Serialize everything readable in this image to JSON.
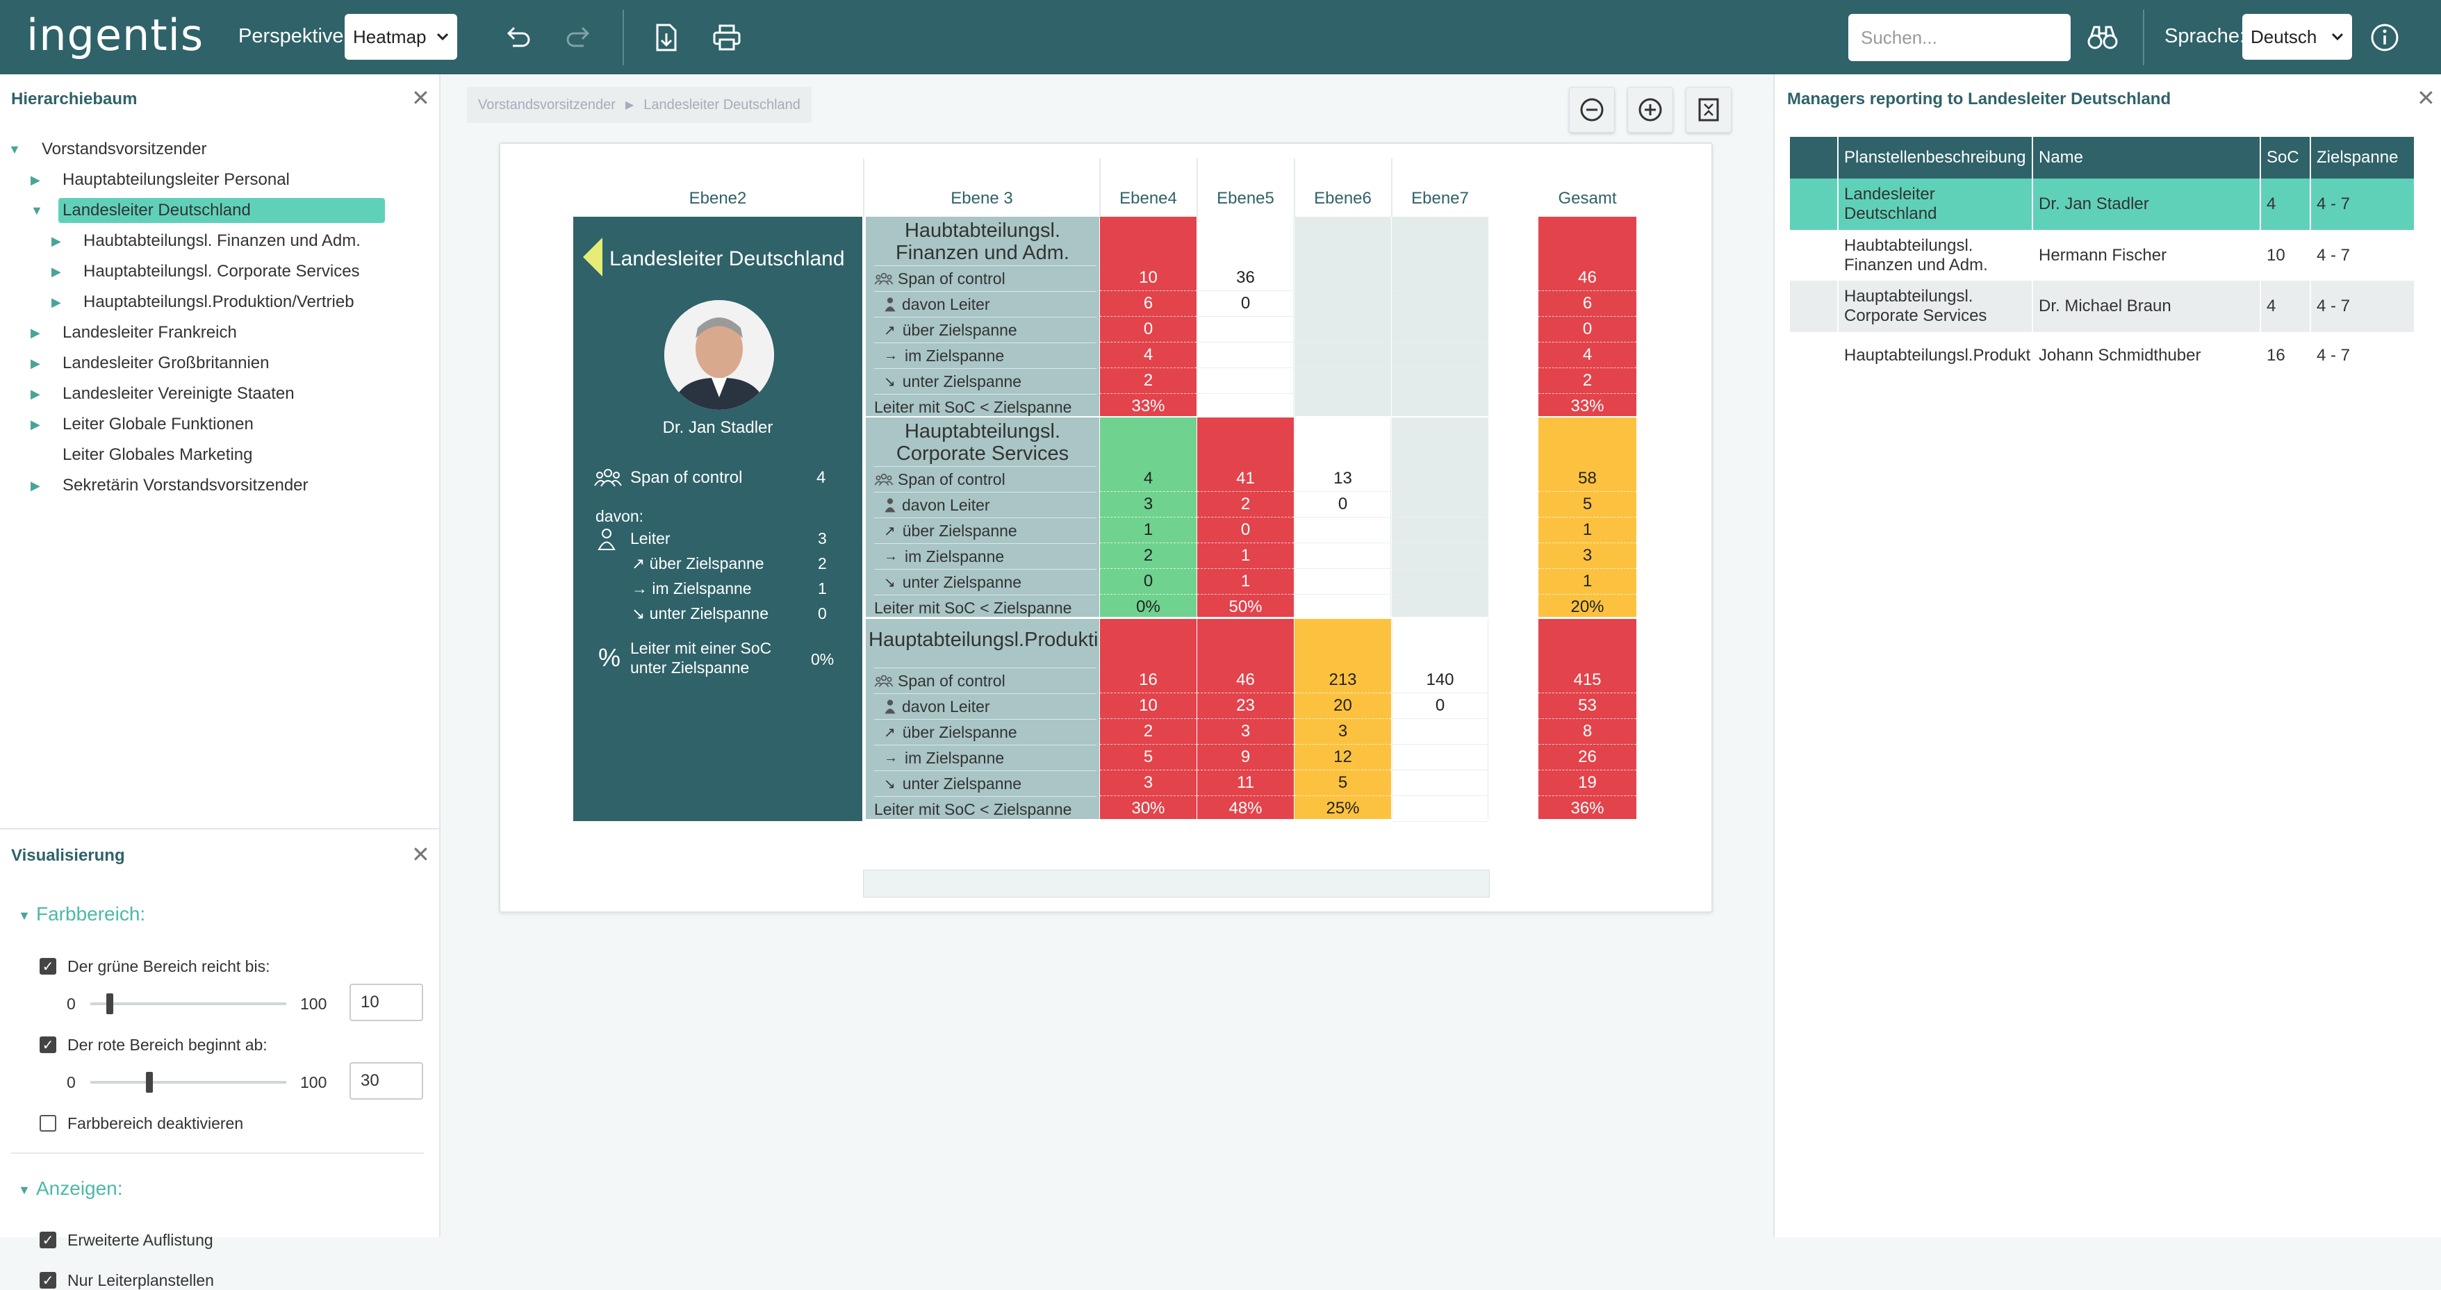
{
  "header": {
    "logo": "ingentis",
    "perspektive_label": "Perspektive:",
    "perspektive_value": "Heatmap",
    "search_placeholder": "Suchen...",
    "sprache_label": "Sprache:",
    "sprache_value": "Deutsch"
  },
  "hierarchy": {
    "title": "Hierarchiebaum",
    "items": [
      {
        "label": "Vorstandsvorsitzender",
        "level": 0,
        "expanded": true
      },
      {
        "label": "Hauptabteilungsleiter Personal",
        "level": 1
      },
      {
        "label": "Landesleiter Deutschland",
        "level": 1,
        "expanded": true,
        "selected": true
      },
      {
        "label": "Haubtabteilungsl. Finanzen und Adm.",
        "level": 2
      },
      {
        "label": "Hauptabteilungsl. Corporate Services",
        "level": 2
      },
      {
        "label": "Hauptabteilungsl.Produktion/Vertrieb",
        "level": 2
      },
      {
        "label": "Landesleiter Frankreich",
        "level": 1
      },
      {
        "label": "Landesleiter Großbritannien",
        "level": 1
      },
      {
        "label": "Landesleiter Vereinigte Staaten",
        "level": 1
      },
      {
        "label": "Leiter Globale Funktionen",
        "level": 1
      },
      {
        "label": "Leiter Globales Marketing",
        "level": 1,
        "leaf": true
      },
      {
        "label": "Sekretärin Vorstandsvorsitzender",
        "level": 1
      }
    ]
  },
  "viz": {
    "title": "Visualisierung",
    "farbbereich": "Farbbereich:",
    "green_label": "Der grüne Bereich reicht bis:",
    "green_min": "0",
    "green_max": "100",
    "green_value": "10",
    "red_label": "Der rote Bereich beginnt ab:",
    "red_min": "0",
    "red_max": "100",
    "red_value": "30",
    "disable_label": "Farbbereich deaktivieren",
    "anzeigen": "Anzeigen:",
    "erweitert_label": "Erweiterte Auflistung",
    "nur_leiter_label": "Nur Leiterplanstellen",
    "green_fraction": 0.1,
    "red_fraction": 0.3
  },
  "breadcrumb": [
    "Vorstandsvorsitzender",
    "Landesleiter Deutschland"
  ],
  "heatmap": {
    "columns": [
      "Ebene2",
      "Ebene 3",
      "Ebene4",
      "Ebene5",
      "Ebene6",
      "Ebene7",
      "Gesamt"
    ],
    "manager": {
      "title": "Landesleiter Deutschland",
      "name": "Dr. Jan Stadler",
      "span_label": "Span of control",
      "span_value": "4",
      "davon": "davon:",
      "leiter_label": "Leiter",
      "leiter_value": "3",
      "ueber_label": "über Zielspanne",
      "ueber_value": "2",
      "im_label": "im Zielspanne",
      "im_value": "1",
      "unter_label": "unter Zielspanne",
      "unter_value": "0",
      "pct_label1": "Leiter mit einer SoC",
      "pct_label2": "unter Zielspanne",
      "pct_value": "0%"
    },
    "row_labels": [
      "Span of control",
      "davon Leiter",
      "über Zielspanne",
      "im Zielspanne",
      "unter Zielspanne",
      "Leiter mit SoC < Zielspanne"
    ],
    "groups": [
      {
        "title1": "Haubtabteilungsl.",
        "title2": "Finanzen und Adm.",
        "e4": [
          "10",
          "6",
          "0",
          "4",
          "2",
          "33%"
        ],
        "e4_color": "red",
        "e5": [
          "36",
          "0",
          "",
          "",
          "",
          ""
        ],
        "e5_color": "white",
        "e6": [
          "",
          "",
          "",
          "",
          "",
          ""
        ],
        "e6_color": "grey",
        "e7": [
          "",
          "",
          "",
          "",
          "",
          ""
        ],
        "e7_color": "grey",
        "total": [
          "46",
          "6",
          "0",
          "4",
          "2",
          "33%"
        ],
        "total_color": "red"
      },
      {
        "title1": "Hauptabteilungsl.",
        "title2": "Corporate Services",
        "e4": [
          "4",
          "3",
          "1",
          "2",
          "0",
          "0%"
        ],
        "e4_color": "green",
        "e5": [
          "41",
          "2",
          "0",
          "1",
          "1",
          "50%"
        ],
        "e5_color": "red",
        "e6": [
          "13",
          "0",
          "",
          "",
          "",
          ""
        ],
        "e6_color": "white",
        "e7": [
          "",
          "",
          "",
          "",
          "",
          ""
        ],
        "e7_color": "grey",
        "total": [
          "58",
          "5",
          "1",
          "3",
          "1",
          "20%"
        ],
        "total_color": "yellow"
      },
      {
        "title1": "Hauptabteilungsl.Produktio",
        "title2": "",
        "e4": [
          "16",
          "10",
          "2",
          "5",
          "3",
          "30%"
        ],
        "e4_color": "red",
        "e5": [
          "46",
          "23",
          "3",
          "9",
          "11",
          "48%"
        ],
        "e5_color": "red",
        "e6": [
          "213",
          "20",
          "3",
          "12",
          "5",
          "25%"
        ],
        "e6_color": "yellow",
        "e7": [
          "140",
          "0",
          "",
          "",
          "",
          ""
        ],
        "e7_color": "white",
        "total": [
          "415",
          "53",
          "8",
          "26",
          "19",
          "36%"
        ],
        "total_color": "red"
      }
    ],
    "colors": {
      "red": "#e3434b",
      "green": "#6fd28e",
      "yellow": "#fcc23f",
      "white": "#ffffff",
      "grey": "#e3ebeb",
      "label_bg": "#a9c5c5"
    }
  },
  "right": {
    "title": "Managers reporting to Landesleiter Deutschland",
    "headers": [
      "Planstellenbeschreibung",
      "Name",
      "SoC",
      "Zielspanne"
    ],
    "rows": [
      {
        "desc": "Landesleiter Deutschland",
        "name": "Dr. Jan Stadler",
        "soc": "4",
        "ziel": "4 - 7",
        "selected": true
      },
      {
        "desc": "Haubtabteilungsl. Finanzen und Adm.",
        "name": "Hermann Fischer",
        "soc": "10",
        "ziel": "4 - 7"
      },
      {
        "desc": "Hauptabteilungsl. Corporate Services",
        "name": "Dr. Michael Braun",
        "soc": "4",
        "ziel": "4 - 7"
      },
      {
        "desc": "Hauptabteilungsl.Produkt",
        "name": "Johann Schmidthuber",
        "soc": "16",
        "ziel": "4 - 7"
      }
    ]
  }
}
